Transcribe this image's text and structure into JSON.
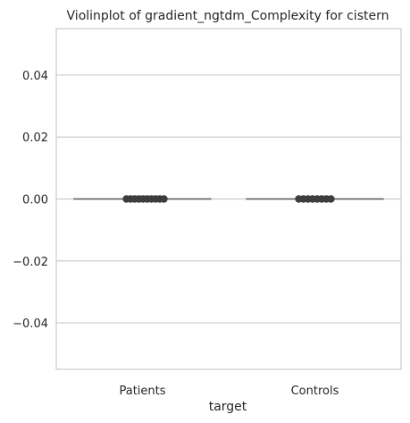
{
  "chart_data": {
    "type": "violin",
    "title": "Violinplot of gradient_ngtdm_Complexity for cistern",
    "xlabel": "target",
    "ylabel": "",
    "categories": [
      "Patients",
      "Controls"
    ],
    "ylim": [
      -0.055,
      0.055
    ],
    "yticks": [
      0.04,
      0.02,
      0.0,
      -0.02,
      -0.04
    ],
    "ytick_labels": [
      "0.04",
      "0.02",
      "0.00",
      "−0.02",
      "−0.04"
    ],
    "grid": "horizontal",
    "legend": "none",
    "series": [
      {
        "category": "Patients",
        "median": 0.0,
        "q1": 0.0,
        "q3": 0.0,
        "points": [
          0.0,
          0.0,
          0.0,
          0.0,
          0.0,
          0.0,
          0.0,
          0.0,
          0.0,
          0.0
        ]
      },
      {
        "category": "Controls",
        "median": 0.0,
        "q1": 0.0,
        "q3": 0.0,
        "points": [
          0.0,
          0.0,
          0.0,
          0.0,
          0.0,
          0.0,
          0.0,
          0.0
        ]
      }
    ],
    "colors": {
      "grid": "#cccccc",
      "spine": "#cccccc",
      "violin_line": "#595959",
      "points": "#3d3d3d",
      "text": "#262626"
    }
  }
}
